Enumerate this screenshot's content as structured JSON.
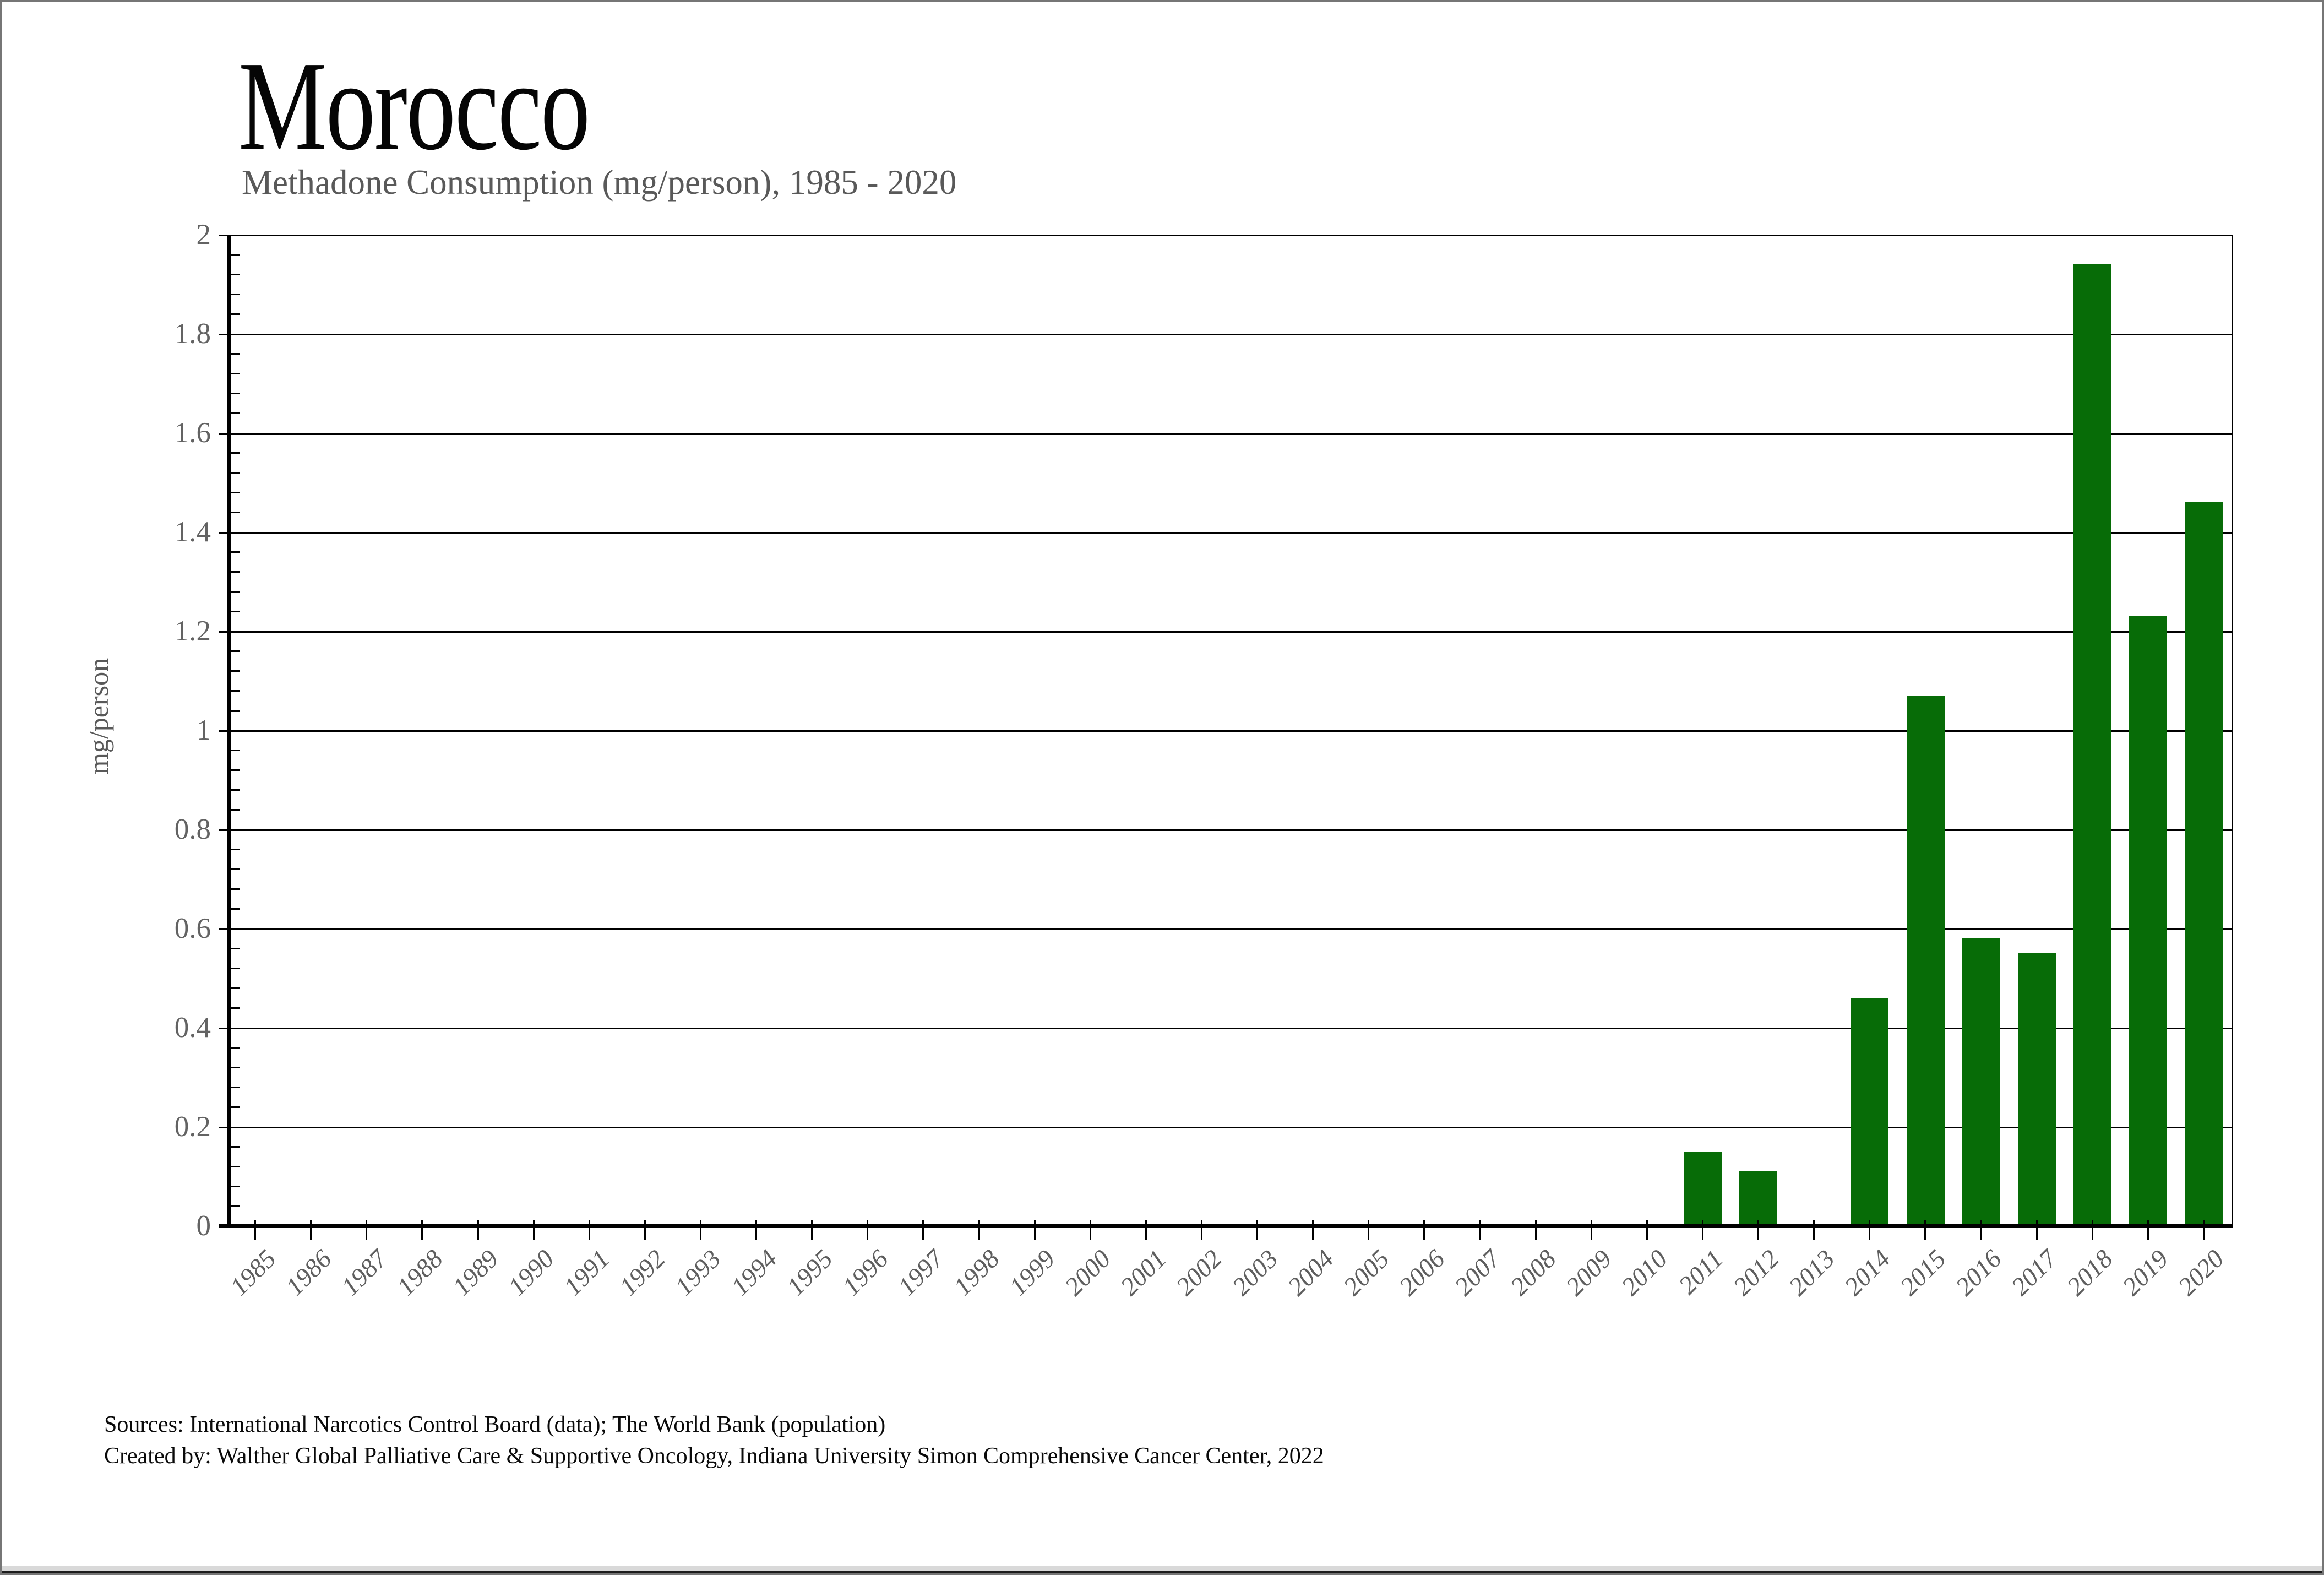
{
  "page": {
    "title": "Morocco",
    "subtitle": "Methadone Consumption (mg/person), 1985 - 2020",
    "source_line1": "Sources: International Narcotics Control Board (data); The World Bank (population)",
    "source_line2": "Created by: Walther Global Palliative Care & Supportive Oncology, Indiana University Simon Comprehensive Cancer Center, 2022"
  },
  "colors": {
    "bar_green": "#076c07",
    "axis_black": "#000000",
    "label_gray": "#595959",
    "bottom_strip_gray": "#d9d9d9",
    "bottom_strip_edge": "#1d1d1d",
    "page_border": "#767676"
  },
  "chart_data": {
    "type": "bar",
    "title": "Morocco",
    "subtitle": "Methadone Consumption (mg/person), 1985 - 2020",
    "xlabel": "",
    "ylabel": "mg/person",
    "ylim": [
      0,
      2
    ],
    "grid": "horizontal",
    "legend_position": "none",
    "bar_color": "#076c07",
    "yticks": [
      0,
      0.2,
      0.4,
      0.6,
      0.8,
      1,
      1.2,
      1.4,
      1.6,
      1.8,
      2
    ],
    "ytick_labels": [
      "0",
      "0.2",
      "0.4",
      "0.6",
      "0.8",
      "1",
      "1.2",
      "1.4",
      "1.6",
      "1.8",
      "2"
    ],
    "minor_tick_step": 0.04,
    "categories": [
      "1985",
      "1986",
      "1987",
      "1988",
      "1989",
      "1990",
      "1991",
      "1992",
      "1993",
      "1994",
      "1995",
      "1996",
      "1997",
      "1998",
      "1999",
      "2000",
      "2001",
      "2002",
      "2003",
      "2004",
      "2005",
      "2006",
      "2007",
      "2008",
      "2009",
      "2010",
      "2011",
      "2012",
      "2013",
      "2014",
      "2015",
      "2016",
      "2017",
      "2018",
      "2019",
      "2020"
    ],
    "values": [
      0,
      0,
      0,
      0,
      0,
      0,
      0,
      0,
      0,
      0,
      0,
      0,
      0,
      0,
      0,
      0,
      0,
      0,
      0,
      0.004,
      0,
      0,
      0.002,
      0,
      0.002,
      0.001,
      0.15,
      0.11,
      0,
      0.46,
      1.07,
      0.58,
      0.55,
      1.94,
      1.23,
      1.46
    ]
  }
}
